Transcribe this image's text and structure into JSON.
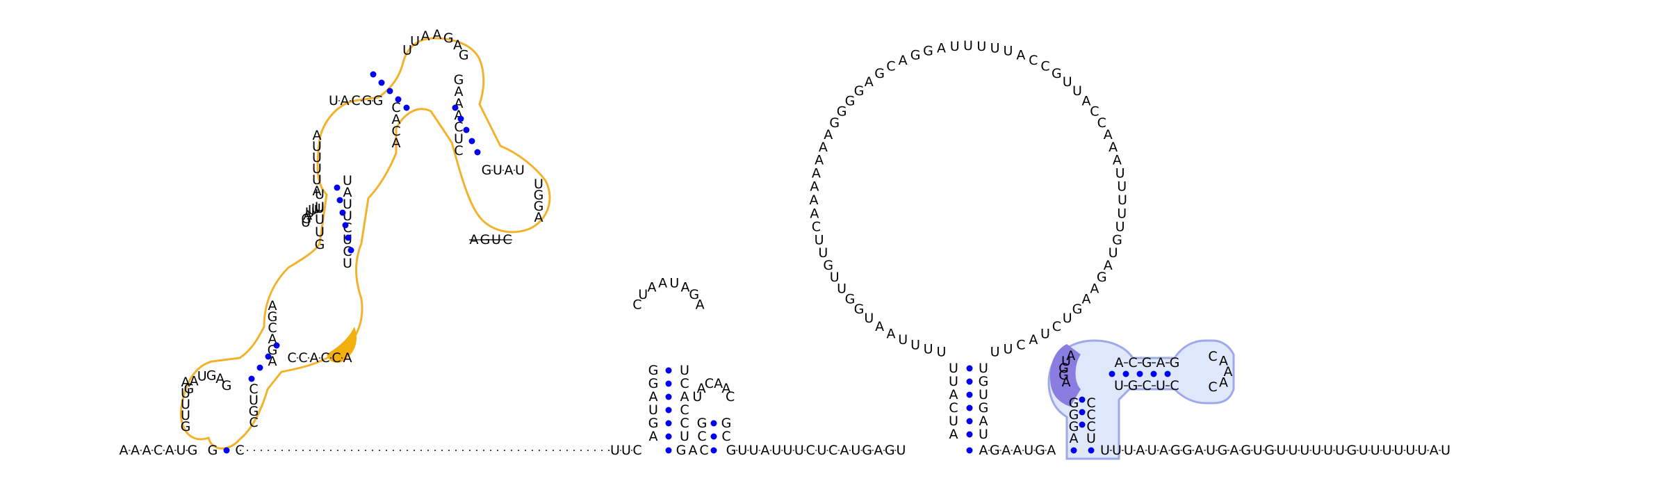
{
  "sequence_5p_start": "AAACAUGCG",
  "gap_region": "…",
  "trunk": "UUCGACGUUAUUUCUCAUGAGUAGAAUGAUUUAUAGGAUGAGUGUUUUUUGUUUUUUAU",
  "hairpins": [
    {
      "left": "AGUAGG",
      "loop": "CUAAUAGA",
      "right": "UCCACU"
    },
    {
      "left": "CG",
      "loop": "UACAAC",
      "right": "CG"
    }
  ],
  "big_loop": {
    "stem_left": "AUCAUU",
    "stem_right": "UAGUGU",
    "loop": "UUUUAAUGGUUGUUCAAAAAAAGGGGAGCAGGAUUUUUACCGUUACCAAAUUUUUGUAGAAGUCUACUU"
  },
  "domain_highlights": [
    {
      "name": "orange-domain",
      "color": "#F3B22C",
      "fill": "#FFFFFF"
    },
    {
      "name": "blue-domain",
      "color": "#9DA9E8",
      "fill": "#DFE7FA"
    }
  ],
  "pair_color": "#0000EE",
  "highlight_purple": "#8A7CE0",
  "highlight_orange": "#F1B00E"
}
